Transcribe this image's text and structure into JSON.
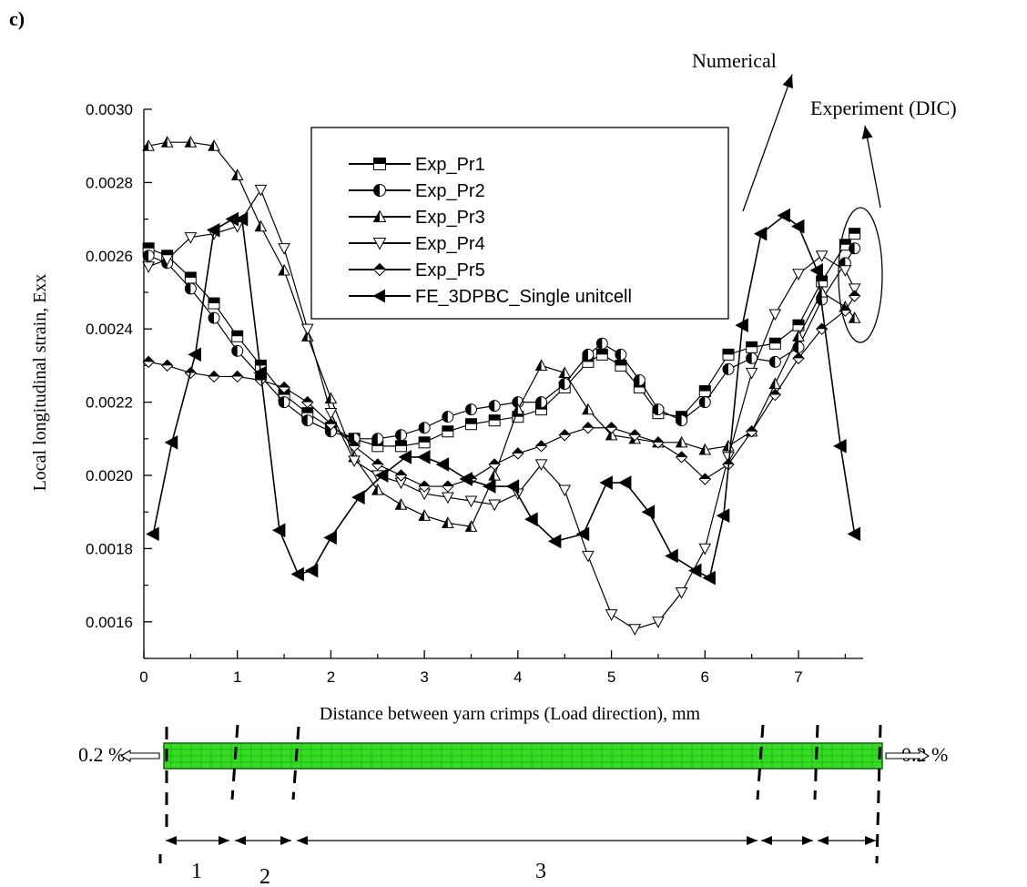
{
  "panel_label": "c)",
  "annotations": {
    "numerical": "Numerical",
    "experiment": "Experiment (DIC)"
  },
  "colors": {
    "line": "#000000",
    "background": "#ffffff",
    "mesh_fill": "#33dd22",
    "mesh_line": "#0a5a0a"
  },
  "chart_data": {
    "type": "line",
    "xlabel": "Distance between yarn crimps (Load direction), mm",
    "ylabel": "Local longitudinal strain, Exx",
    "xlim": [
      0,
      7.75
    ],
    "ylim": [
      0.0015,
      0.003
    ],
    "xticks": [
      "0",
      "1",
      "2",
      "3",
      "4",
      "5",
      "6",
      "7"
    ],
    "yticks": [
      "0.0016",
      "0.0018",
      "0.0020",
      "0.0022",
      "0.0024",
      "0.0026",
      "0.0028",
      "0.0030"
    ],
    "grid": false,
    "legend_position": "top-center",
    "series": [
      {
        "name": "Exp_Pr1",
        "marker": "square-half",
        "x": [
          0.05,
          0.25,
          0.5,
          0.75,
          1.0,
          1.25,
          1.5,
          1.75,
          2.0,
          2.25,
          2.5,
          2.75,
          3.0,
          3.25,
          3.5,
          3.75,
          4.0,
          4.25,
          4.5,
          4.75,
          4.9,
          5.1,
          5.3,
          5.5,
          5.75,
          6.0,
          6.25,
          6.5,
          6.75,
          7.0,
          7.25,
          7.5,
          7.6
        ],
        "y": [
          0.00262,
          0.0026,
          0.00254,
          0.00247,
          0.00238,
          0.0023,
          0.00222,
          0.00217,
          0.00213,
          0.0021,
          0.00208,
          0.00208,
          0.00209,
          0.00212,
          0.00214,
          0.00215,
          0.00216,
          0.00218,
          0.00224,
          0.00231,
          0.00233,
          0.0023,
          0.00224,
          0.00217,
          0.00216,
          0.00223,
          0.00233,
          0.00235,
          0.00236,
          0.00241,
          0.00253,
          0.00263,
          0.00266
        ]
      },
      {
        "name": "Exp_Pr2",
        "marker": "circle-half",
        "x": [
          0.05,
          0.25,
          0.5,
          0.75,
          1.0,
          1.25,
          1.5,
          1.75,
          2.0,
          2.25,
          2.5,
          2.75,
          3.0,
          3.25,
          3.5,
          3.75,
          4.0,
          4.25,
          4.5,
          4.75,
          4.9,
          5.1,
          5.3,
          5.5,
          5.75,
          6.0,
          6.25,
          6.5,
          6.75,
          7.0,
          7.25,
          7.5,
          7.6
        ],
        "y": [
          0.0026,
          0.00258,
          0.00251,
          0.00243,
          0.00234,
          0.00227,
          0.0022,
          0.00215,
          0.00212,
          0.0021,
          0.0021,
          0.00211,
          0.00213,
          0.00216,
          0.00218,
          0.00219,
          0.0022,
          0.0022,
          0.00225,
          0.00233,
          0.00236,
          0.00233,
          0.00226,
          0.00218,
          0.00215,
          0.0022,
          0.00229,
          0.00232,
          0.00231,
          0.00235,
          0.00248,
          0.00258,
          0.00262
        ]
      },
      {
        "name": "Exp_Pr3",
        "marker": "triangle-up",
        "x": [
          0.05,
          0.25,
          0.5,
          0.75,
          1.0,
          1.25,
          1.5,
          1.75,
          2.0,
          2.25,
          2.5,
          2.75,
          3.0,
          3.25,
          3.5,
          3.75,
          4.0,
          4.25,
          4.5,
          4.75,
          5.0,
          5.25,
          5.5,
          5.75,
          6.0,
          6.25,
          6.5,
          6.75,
          7.0,
          7.25,
          7.5,
          7.6
        ],
        "y": [
          0.0029,
          0.00291,
          0.00291,
          0.0029,
          0.00282,
          0.00268,
          0.00256,
          0.00238,
          0.00221,
          0.00205,
          0.00196,
          0.00192,
          0.00189,
          0.00187,
          0.00186,
          0.002,
          0.00218,
          0.0023,
          0.00228,
          0.00218,
          0.00211,
          0.0021,
          0.00209,
          0.00209,
          0.00207,
          0.00208,
          0.00212,
          0.00225,
          0.00238,
          0.0025,
          0.00246,
          0.00243
        ]
      },
      {
        "name": "Exp_Pr4",
        "marker": "triangle-down",
        "x": [
          0.05,
          0.25,
          0.5,
          0.75,
          1.0,
          1.25,
          1.5,
          1.75,
          2.0,
          2.25,
          2.5,
          2.75,
          3.0,
          3.25,
          3.5,
          3.75,
          4.0,
          4.25,
          4.5,
          4.75,
          5.0,
          5.25,
          5.5,
          5.75,
          6.0,
          6.25,
          6.5,
          6.75,
          7.0,
          7.25,
          7.5,
          7.6
        ],
        "y": [
          0.00257,
          0.00259,
          0.00265,
          0.00266,
          0.00268,
          0.00278,
          0.00262,
          0.0024,
          0.00217,
          0.00204,
          0.002,
          0.00198,
          0.00195,
          0.00194,
          0.00193,
          0.00192,
          0.00195,
          0.00203,
          0.00196,
          0.00178,
          0.00162,
          0.00158,
          0.0016,
          0.00168,
          0.0018,
          0.00205,
          0.00228,
          0.00244,
          0.00255,
          0.0026,
          0.00256,
          0.00251
        ]
      },
      {
        "name": "Exp_Pr5",
        "marker": "diamond-half",
        "x": [
          0.05,
          0.25,
          0.5,
          0.75,
          1.0,
          1.25,
          1.5,
          1.75,
          2.0,
          2.25,
          2.5,
          2.75,
          3.0,
          3.25,
          3.5,
          3.75,
          4.0,
          4.25,
          4.5,
          4.75,
          5.0,
          5.25,
          5.5,
          5.75,
          6.0,
          6.25,
          6.5,
          6.75,
          7.0,
          7.25,
          7.5,
          7.6
        ],
        "y": [
          0.00231,
          0.0023,
          0.00228,
          0.00227,
          0.00227,
          0.00226,
          0.00224,
          0.0022,
          0.00214,
          0.00208,
          0.00203,
          0.002,
          0.00197,
          0.00197,
          0.00199,
          0.00203,
          0.00206,
          0.00208,
          0.00211,
          0.00213,
          0.00213,
          0.00211,
          0.00209,
          0.00205,
          0.00199,
          0.00203,
          0.00212,
          0.00222,
          0.00232,
          0.0024,
          0.00245,
          0.00249
        ]
      },
      {
        "name": "FE_3DPBC_Single unitcell",
        "marker": "triangle-left",
        "x": [
          0.1,
          0.3,
          0.55,
          0.75,
          0.95,
          1.05,
          1.25,
          1.45,
          1.65,
          1.8,
          2.0,
          2.3,
          2.55,
          2.8,
          3.0,
          3.2,
          3.45,
          3.7,
          3.95,
          4.15,
          4.4,
          4.7,
          4.95,
          5.15,
          5.4,
          5.65,
          5.9,
          6.05,
          6.2,
          6.4,
          6.6,
          6.85,
          7.0,
          7.2,
          7.45,
          7.6
        ],
        "y": [
          0.00184,
          0.00209,
          0.00233,
          0.00267,
          0.0027,
          0.0027,
          0.00228,
          0.00185,
          0.00173,
          0.00174,
          0.00183,
          0.00194,
          0.002,
          0.00205,
          0.00205,
          0.00203,
          0.00199,
          0.00197,
          0.00197,
          0.00188,
          0.00182,
          0.00184,
          0.00198,
          0.00198,
          0.0019,
          0.00178,
          0.00174,
          0.00172,
          0.00189,
          0.00241,
          0.00266,
          0.00271,
          0.00268,
          0.00256,
          0.00208,
          0.00184
        ]
      }
    ]
  },
  "specimen": {
    "load_left": "0.2 %",
    "load_right": "0.2 %",
    "zones": [
      "1",
      "2",
      "3"
    ]
  }
}
